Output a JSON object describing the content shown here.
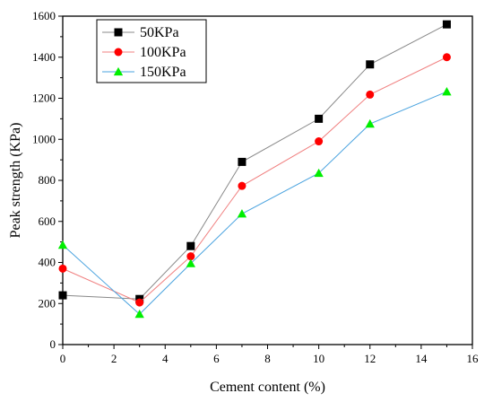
{
  "chart_data": {
    "type": "line",
    "xlabel": "Cement content (%)",
    "ylabel": "Peak strength (KPa)",
    "xlim": [
      0,
      16
    ],
    "ylim": [
      0,
      1600
    ],
    "xticks": [
      0,
      2,
      4,
      6,
      8,
      10,
      12,
      14,
      16
    ],
    "yticks": [
      0,
      200,
      400,
      600,
      800,
      1000,
      1200,
      1400,
      1600
    ],
    "x": [
      0,
      3,
      5,
      7,
      10,
      12,
      15
    ],
    "grid": false,
    "legend_position": "top-left",
    "series": [
      {
        "name": "50KPa",
        "marker": "square",
        "marker_color": "#000000",
        "line_color": "#888888",
        "values": [
          240,
          222,
          480,
          890,
          1100,
          1365,
          1560
        ]
      },
      {
        "name": "100KPa",
        "marker": "circle",
        "marker_color": "#ff0000",
        "line_color": "#f08080",
        "values": [
          370,
          205,
          430,
          773,
          990,
          1218,
          1400
        ]
      },
      {
        "name": "150KPa",
        "marker": "triangle",
        "marker_color": "#00ee00",
        "line_color": "#4aa3df",
        "values": [
          485,
          148,
          395,
          637,
          835,
          1075,
          1232
        ]
      }
    ]
  }
}
